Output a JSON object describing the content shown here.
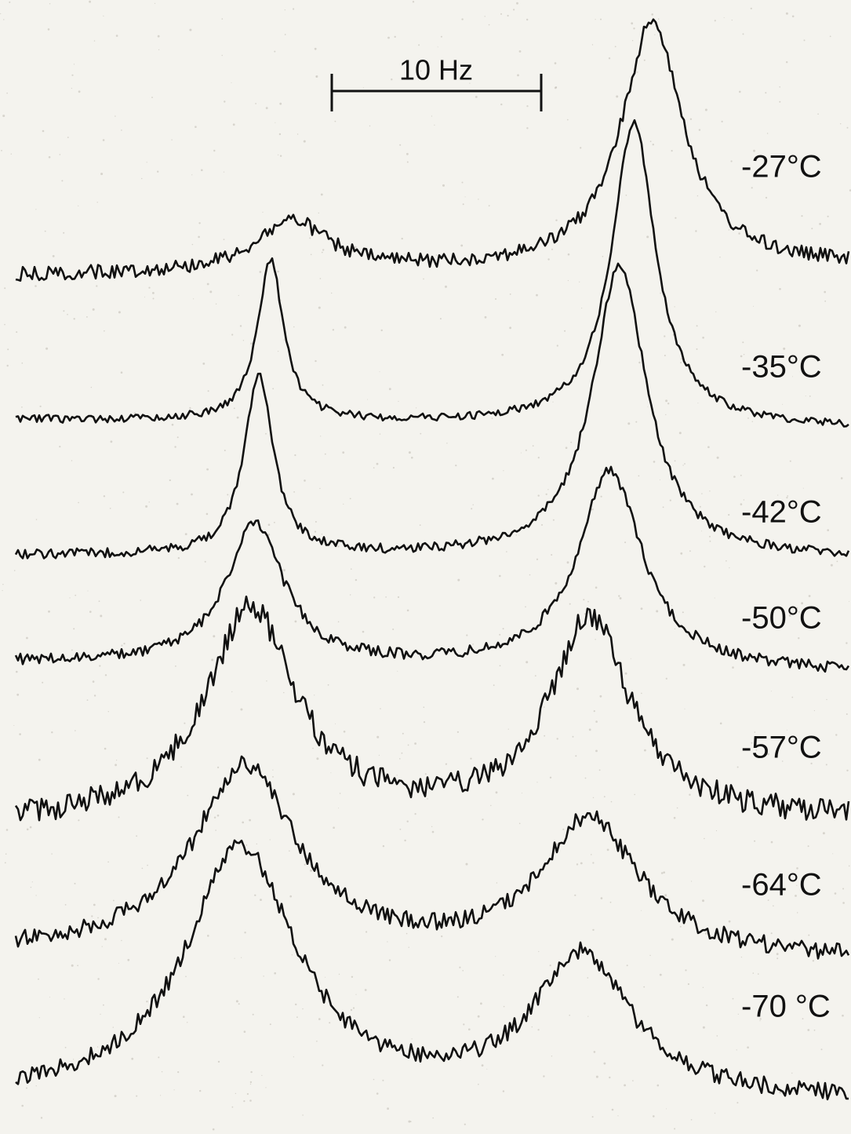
{
  "scale_bar": {
    "label": "10 Hz"
  },
  "traces": [
    {
      "label": "-27°C"
    },
    {
      "label": "-35°C"
    },
    {
      "label": "-42°C"
    },
    {
      "label": "-50°C"
    },
    {
      "label": "-57°C"
    },
    {
      "label": "-64°C"
    },
    {
      "label": "-70 °C"
    }
  ]
}
